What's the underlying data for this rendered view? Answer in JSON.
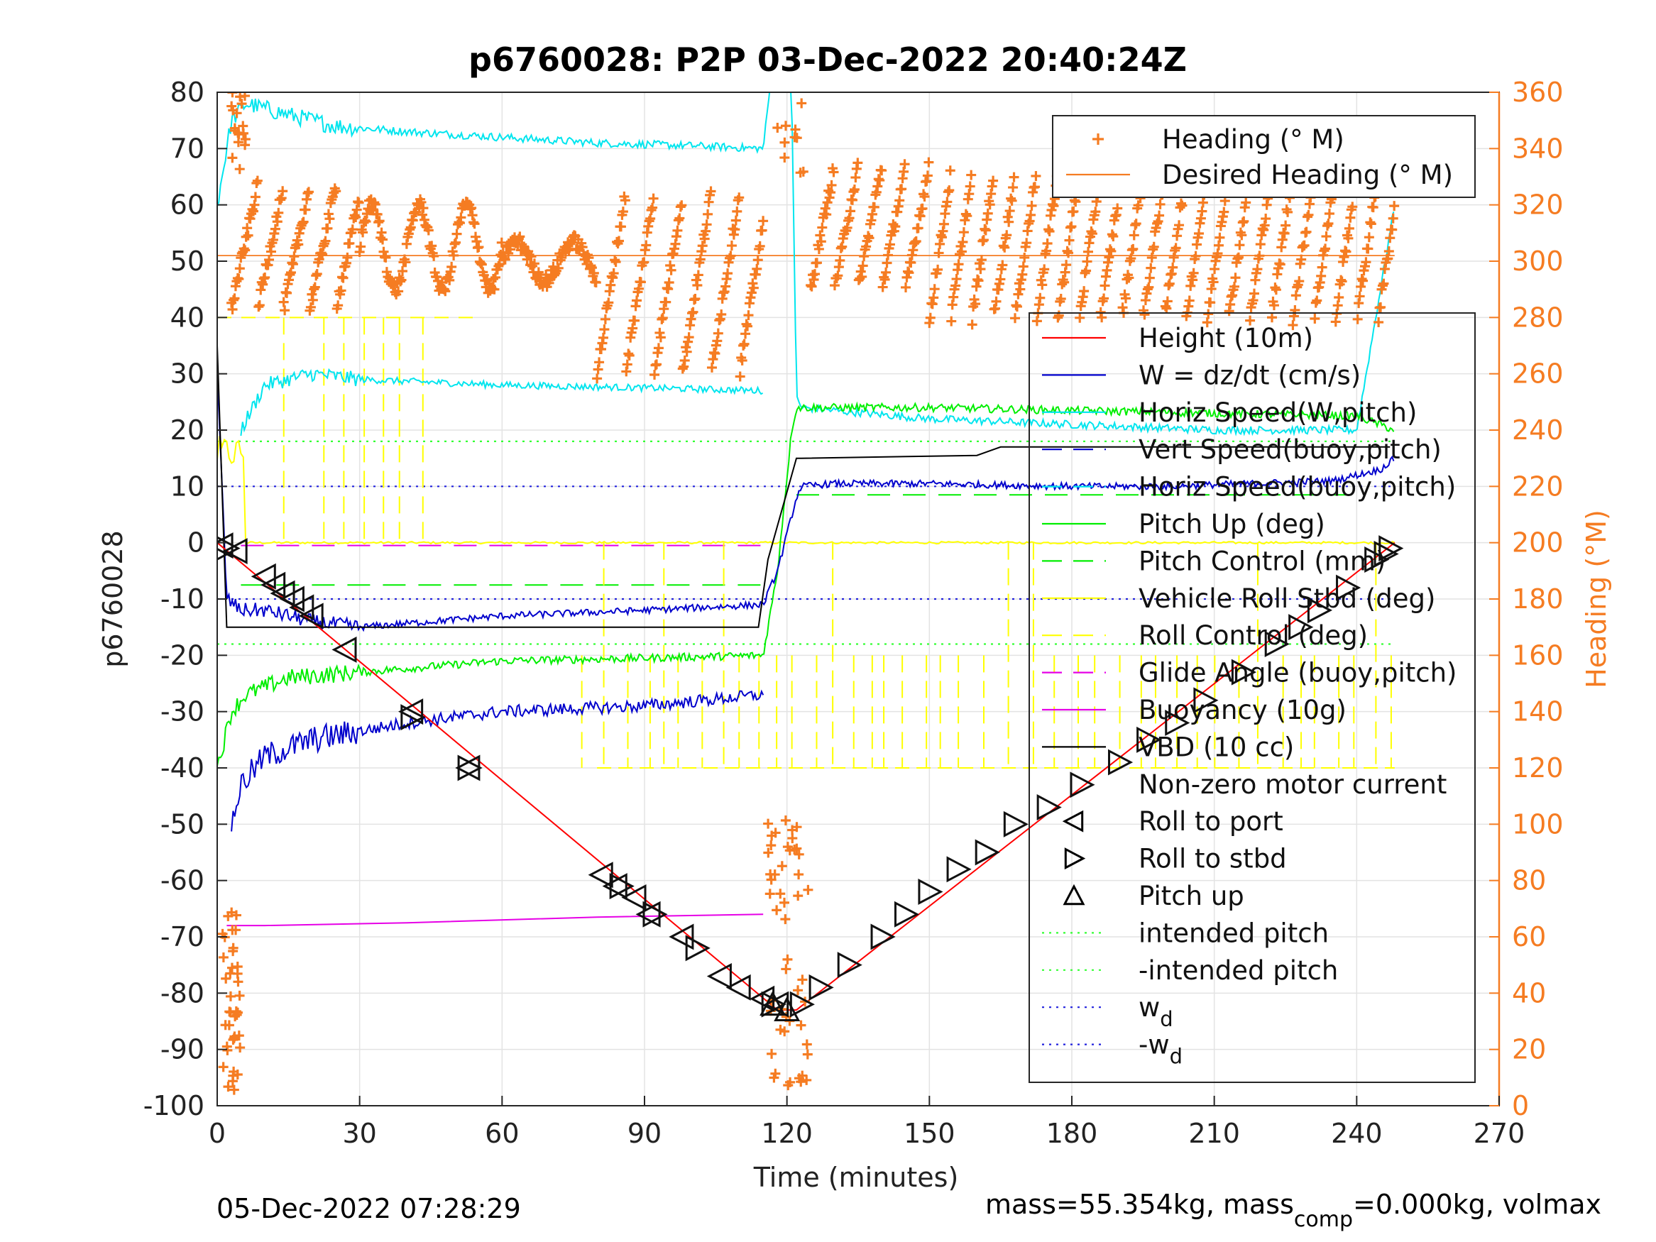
{
  "chart_data": {
    "type": "line",
    "title": "p6760028: P2P 03-Dec-2022 20:40:24Z",
    "xlabel": "Time (minutes)",
    "ylabel": "p6760028",
    "ylabel_right": "Heading (°M)",
    "xlim": [
      0,
      270
    ],
    "ylim": [
      -100,
      80
    ],
    "ylim_right": [
      0,
      360
    ],
    "xticks": [
      "0",
      "30",
      "60",
      "90",
      "120",
      "150",
      "180",
      "210",
      "240",
      "270"
    ],
    "yticks": [
      "80",
      "70",
      "60",
      "50",
      "40",
      "30",
      "20",
      "10",
      "0",
      "-10",
      "-20",
      "-30",
      "-40",
      "-50",
      "-60",
      "-70",
      "-80",
      "-90",
      "-100"
    ],
    "yticks_right": [
      "360",
      "340",
      "320",
      "300",
      "280",
      "260",
      "240",
      "220",
      "200",
      "180",
      "160",
      "140",
      "120",
      "100",
      "80",
      "60",
      "40",
      "20",
      "0"
    ],
    "grid": true,
    "footer_left": "05-Dec-2022 07:28:29",
    "footer_right_parts": [
      "mass=55.354kg, mass",
      "comp",
      "=0.000kg, volmax"
    ],
    "colors": {
      "height": "#ff0000",
      "w": "#0000cc",
      "horiz_speed": "#00e5ee",
      "pitch": "#00ee00",
      "roll": "#ffff00",
      "buoyancy": "#e600e6",
      "vbd": "#000000",
      "heading": "#f57c22",
      "intended": "#33ff33",
      "wd": "#2222dd"
    },
    "legend_heading": [
      {
        "label": "Heading (° M)",
        "style": "plus",
        "color": "#f57c22"
      },
      {
        "label": "Desired Heading (° M)",
        "style": "line",
        "color": "#f57c22"
      }
    ],
    "legend_main": [
      {
        "label": "Height (10m)",
        "style": "line",
        "color": "#ff0000"
      },
      {
        "label": "W = dz/dt (cm/s)",
        "style": "line",
        "color": "#0000cc"
      },
      {
        "label": "Horiz Speed(W,pitch)",
        "style": "line",
        "color": "#00e5ee"
      },
      {
        "label": "Vert Speed(buoy,pitch)",
        "style": "dash",
        "color": "#0000cc"
      },
      {
        "label": "Horiz Speed(buoy,pitch)",
        "style": "dash",
        "color": "#00e5ee"
      },
      {
        "label": "Pitch Up (deg)",
        "style": "line",
        "color": "#00ee00"
      },
      {
        "label": "Pitch Control (mm)",
        "style": "dash",
        "color": "#00ee00"
      },
      {
        "label": "Vehicle Roll Stbd (deg)",
        "style": "line",
        "color": "#ffff00"
      },
      {
        "label": "Roll Control (deg)",
        "style": "dash",
        "color": "#ffff00"
      },
      {
        "label": "Glide Angle (buoy,pitch)",
        "style": "dash",
        "color": "#e600e6"
      },
      {
        "label": "Buoyancy (10g)",
        "style": "line",
        "color": "#e600e6"
      },
      {
        "label": "VBD (10 cc)",
        "style": "line",
        "color": "#000000"
      },
      {
        "label": "Non-zero motor current",
        "style": "none",
        "color": "#000000"
      },
      {
        "label": "Roll to port",
        "style": "tri-left",
        "color": "#000000"
      },
      {
        "label": "Roll to stbd",
        "style": "tri-right",
        "color": "#000000"
      },
      {
        "label": "Pitch up",
        "style": "tri-up",
        "color": "#000000"
      },
      {
        "label": "intended pitch",
        "style": "dot",
        "color": "#33ff33"
      },
      {
        "label": "-intended pitch",
        "style": "dot",
        "color": "#33ff33"
      },
      {
        "label": "w",
        "sub": "d",
        "style": "dot",
        "color": "#2222dd"
      },
      {
        "label": "-w",
        "sub": "d",
        "style": "dot",
        "color": "#2222dd"
      }
    ],
    "series": [
      {
        "name": "Height (10m)",
        "x": [
          0,
          118,
          122,
          248
        ],
        "y": [
          0,
          -83,
          -83,
          0
        ]
      },
      {
        "name": "W = dz/dt (cm/s)",
        "x": [
          0,
          2,
          5,
          10,
          20,
          30,
          45,
          60,
          90,
          115,
          118,
          122,
          123,
          130,
          150,
          180,
          200,
          235,
          245,
          248
        ],
        "y": [
          30,
          -10,
          -12,
          -12,
          -14,
          -15,
          -14,
          -13,
          -12,
          -11,
          -5,
          8,
          10,
          10.5,
          10.5,
          10,
          10,
          11,
          13,
          15
        ]
      },
      {
        "name": "Horiz Speed(W,pitch)",
        "x": [
          0,
          3,
          6,
          15,
          25,
          40,
          60,
          80,
          100,
          115,
          117,
          120,
          121,
          122,
          123,
          150,
          180,
          210,
          240,
          248
        ],
        "y": [
          60,
          75,
          78,
          76,
          74,
          73,
          72,
          71,
          70.5,
          70,
          85,
          85,
          80,
          26,
          24,
          22,
          21,
          20,
          20,
          60
        ]
      },
      {
        "name": "Horiz Speed(buoy,pitch)",
        "x": [
          5,
          10,
          20,
          30,
          60,
          90,
          115
        ],
        "y": [
          20,
          28,
          30,
          29,
          28,
          27.5,
          27
        ]
      },
      {
        "name": "Pitch Up (deg)",
        "x": [
          0,
          3,
          6,
          15,
          30,
          60,
          90,
          115,
          118,
          121,
          122,
          150,
          180,
          210,
          240,
          248
        ],
        "y": [
          -40,
          -30,
          -27,
          -24,
          -23,
          -21,
          -20.5,
          -20,
          -5,
          20,
          24,
          24,
          23.5,
          23,
          22.5,
          20
        ]
      },
      {
        "name": "Pitch Control (mm)",
        "x": [
          5,
          115,
          122,
          240
        ],
        "y": [
          -7.5,
          -7.5,
          8.5,
          8.5
        ]
      },
      {
        "name": "Vehicle Roll Stbd (deg)",
        "x": [
          0,
          60,
          115,
          120,
          248
        ],
        "y": [
          0,
          0,
          0,
          0,
          0
        ]
      },
      {
        "name": "Buoyancy (10g)",
        "x": [
          2,
          10,
          40,
          80,
          115
        ],
        "y": [
          -68,
          -68,
          -67.5,
          -66.5,
          -66
        ]
      },
      {
        "name": "VBD (10 cc)",
        "x": [
          0,
          2,
          114,
          116,
          122,
          123,
          160,
          165,
          200,
          240,
          247
        ],
        "y": [
          35,
          -15,
          -15,
          -3,
          15,
          15,
          15.5,
          17,
          17,
          17,
          17
        ]
      },
      {
        "name": "Glide Angle (buoy,pitch)",
        "x": [
          5,
          115
        ],
        "y": [
          -0.5,
          -0.5
        ]
      },
      {
        "name": "intended pitch",
        "x": [
          0,
          248
        ],
        "y": [
          18,
          18
        ]
      },
      {
        "name": "-intended pitch",
        "x": [
          0,
          248
        ],
        "y": [
          -18,
          -18
        ]
      },
      {
        "name": "w_d",
        "x": [
          0,
          248
        ],
        "y": [
          10,
          10
        ]
      },
      {
        "name": "-w_d",
        "x": [
          0,
          248
        ],
        "y": [
          -10,
          -10
        ]
      },
      {
        "name": "Desired Heading (° M)",
        "axis": "right",
        "x": [
          0,
          248
        ],
        "y": [
          302,
          302
        ]
      }
    ],
    "heading_scatter_segments": [
      {
        "x0": 3,
        "x1": 30,
        "mean": 305,
        "amp": 22,
        "period": 5.5
      },
      {
        "x0": 30,
        "x1": 60,
        "mean": 305,
        "amp": 15,
        "period": 10
      },
      {
        "x0": 60,
        "x1": 80,
        "mean": 300,
        "amp": 7,
        "period": 12
      },
      {
        "x0": 80,
        "x1": 115,
        "mean": 292,
        "amp": 32,
        "period": 6
      },
      {
        "x0": 125,
        "x1": 150,
        "mean": 312,
        "amp": 22,
        "period": 5
      },
      {
        "x0": 150,
        "x1": 248,
        "mean": 305,
        "amp": 26,
        "period": 4.5
      }
    ],
    "roll_port_markers": {
      "x": [
        1,
        4,
        10,
        12,
        14,
        16,
        18,
        20,
        27,
        41,
        53,
        81,
        84,
        88,
        91,
        98,
        106,
        110,
        115,
        118
      ],
      "y": [
        -0.5,
        -1.5,
        -6,
        -7.5,
        -9,
        -10,
        -11.5,
        -13,
        -19,
        -30,
        -40,
        -59,
        -61,
        -63,
        -66,
        -70,
        -77,
        -79,
        -81,
        -82
      ]
    },
    "roll_stbd_markers": {
      "x": [
        2,
        41,
        53,
        85,
        92,
        101,
        117,
        123,
        127,
        133,
        140,
        145,
        150,
        156,
        162,
        168,
        175,
        182,
        190,
        196,
        202,
        208,
        216,
        223,
        228,
        232,
        238,
        244,
        246,
        247
      ],
      "y": [
        -1,
        -31,
        -40,
        -61,
        -66,
        -72,
        -82,
        -82,
        -79,
        -75,
        -70,
        -66,
        -62,
        -58,
        -55,
        -50,
        -47,
        -43,
        -39,
        -35,
        -32,
        -28,
        -23,
        -18,
        -15,
        -12,
        -8,
        -3,
        -2,
        -1
      ]
    },
    "pitch_up_markers": {
      "x": [
        117,
        120
      ],
      "y": [
        -82,
        -83
      ]
    }
  }
}
